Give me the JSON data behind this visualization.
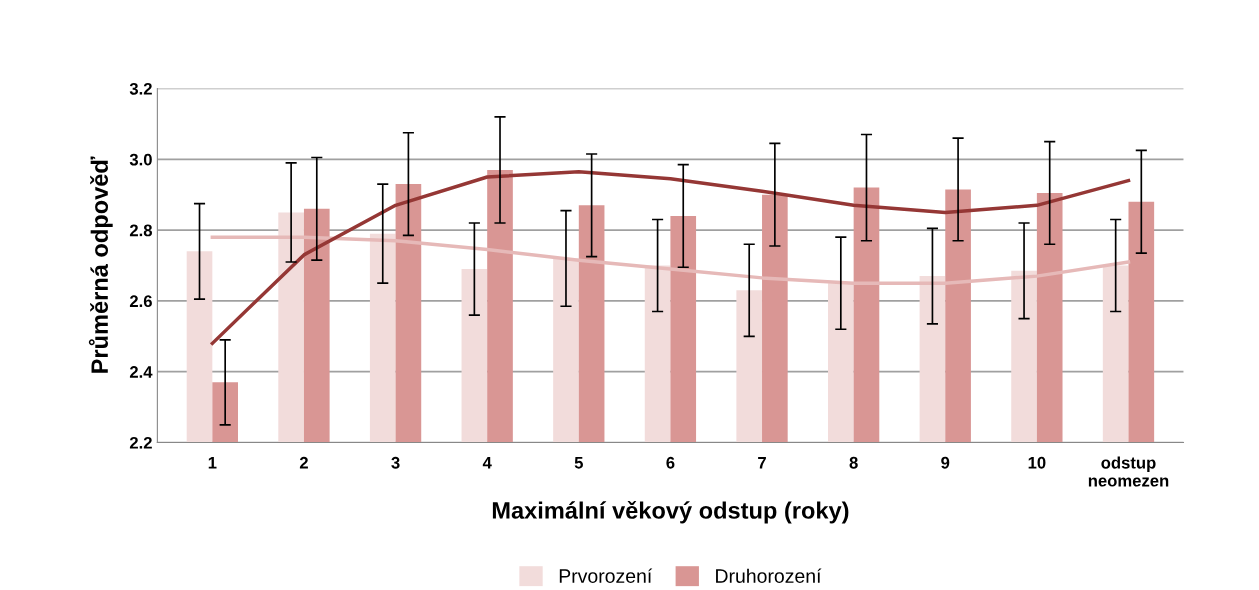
{
  "chart_data": {
    "type": "bar",
    "xlabel": "Maximální věkový odstup (roky)",
    "ylabel": "Průměrná odpověď",
    "categories": [
      "1",
      "2",
      "3",
      "4",
      "5",
      "6",
      "7",
      "8",
      "9",
      "10",
      "odstup\nneomezen"
    ],
    "series": [
      {
        "name": "Prvorození",
        "color": "#f2dcdb",
        "values": [
          2.74,
          2.85,
          2.79,
          2.69,
          2.72,
          2.7,
          2.63,
          2.65,
          2.67,
          2.685,
          2.7
        ],
        "errors": [
          0.135,
          0.14,
          0.14,
          0.13,
          0.135,
          0.13,
          0.13,
          0.13,
          0.135,
          0.135,
          0.13
        ]
      },
      {
        "name": "Druhorození",
        "color": "#d99694",
        "values": [
          2.37,
          2.86,
          2.93,
          2.97,
          2.87,
          2.84,
          2.9,
          2.92,
          2.915,
          2.905,
          2.88
        ],
        "errors": [
          0.12,
          0.145,
          0.145,
          0.15,
          0.145,
          0.145,
          0.145,
          0.15,
          0.145,
          0.145,
          0.145
        ]
      },
      {
        "type": "line",
        "color": "#e6b9b8",
        "values": [
          2.78,
          2.78,
          2.77,
          2.745,
          2.715,
          2.69,
          2.665,
          2.65,
          2.65,
          2.67,
          2.71
        ]
      },
      {
        "type": "line",
        "color": "#953735",
        "values": [
          2.48,
          2.73,
          2.87,
          2.95,
          2.965,
          2.945,
          2.91,
          2.87,
          2.85,
          2.87,
          2.94
        ]
      }
    ],
    "ylim": [
      2.2,
      3.2
    ],
    "yticks": [
      {
        "value": 2.2,
        "label": "2.2"
      },
      {
        "value": 2.4,
        "label": "2.4"
      },
      {
        "value": 2.6,
        "label": "2.6"
      },
      {
        "value": 2.8,
        "label": "2.8"
      },
      {
        "value": 3.0,
        "label": "3.0"
      },
      {
        "value": 3.2,
        "label": "3.2"
      }
    ],
    "grid": "y",
    "legend": "bottom",
    "line_style": "solid",
    "marker": "none"
  }
}
